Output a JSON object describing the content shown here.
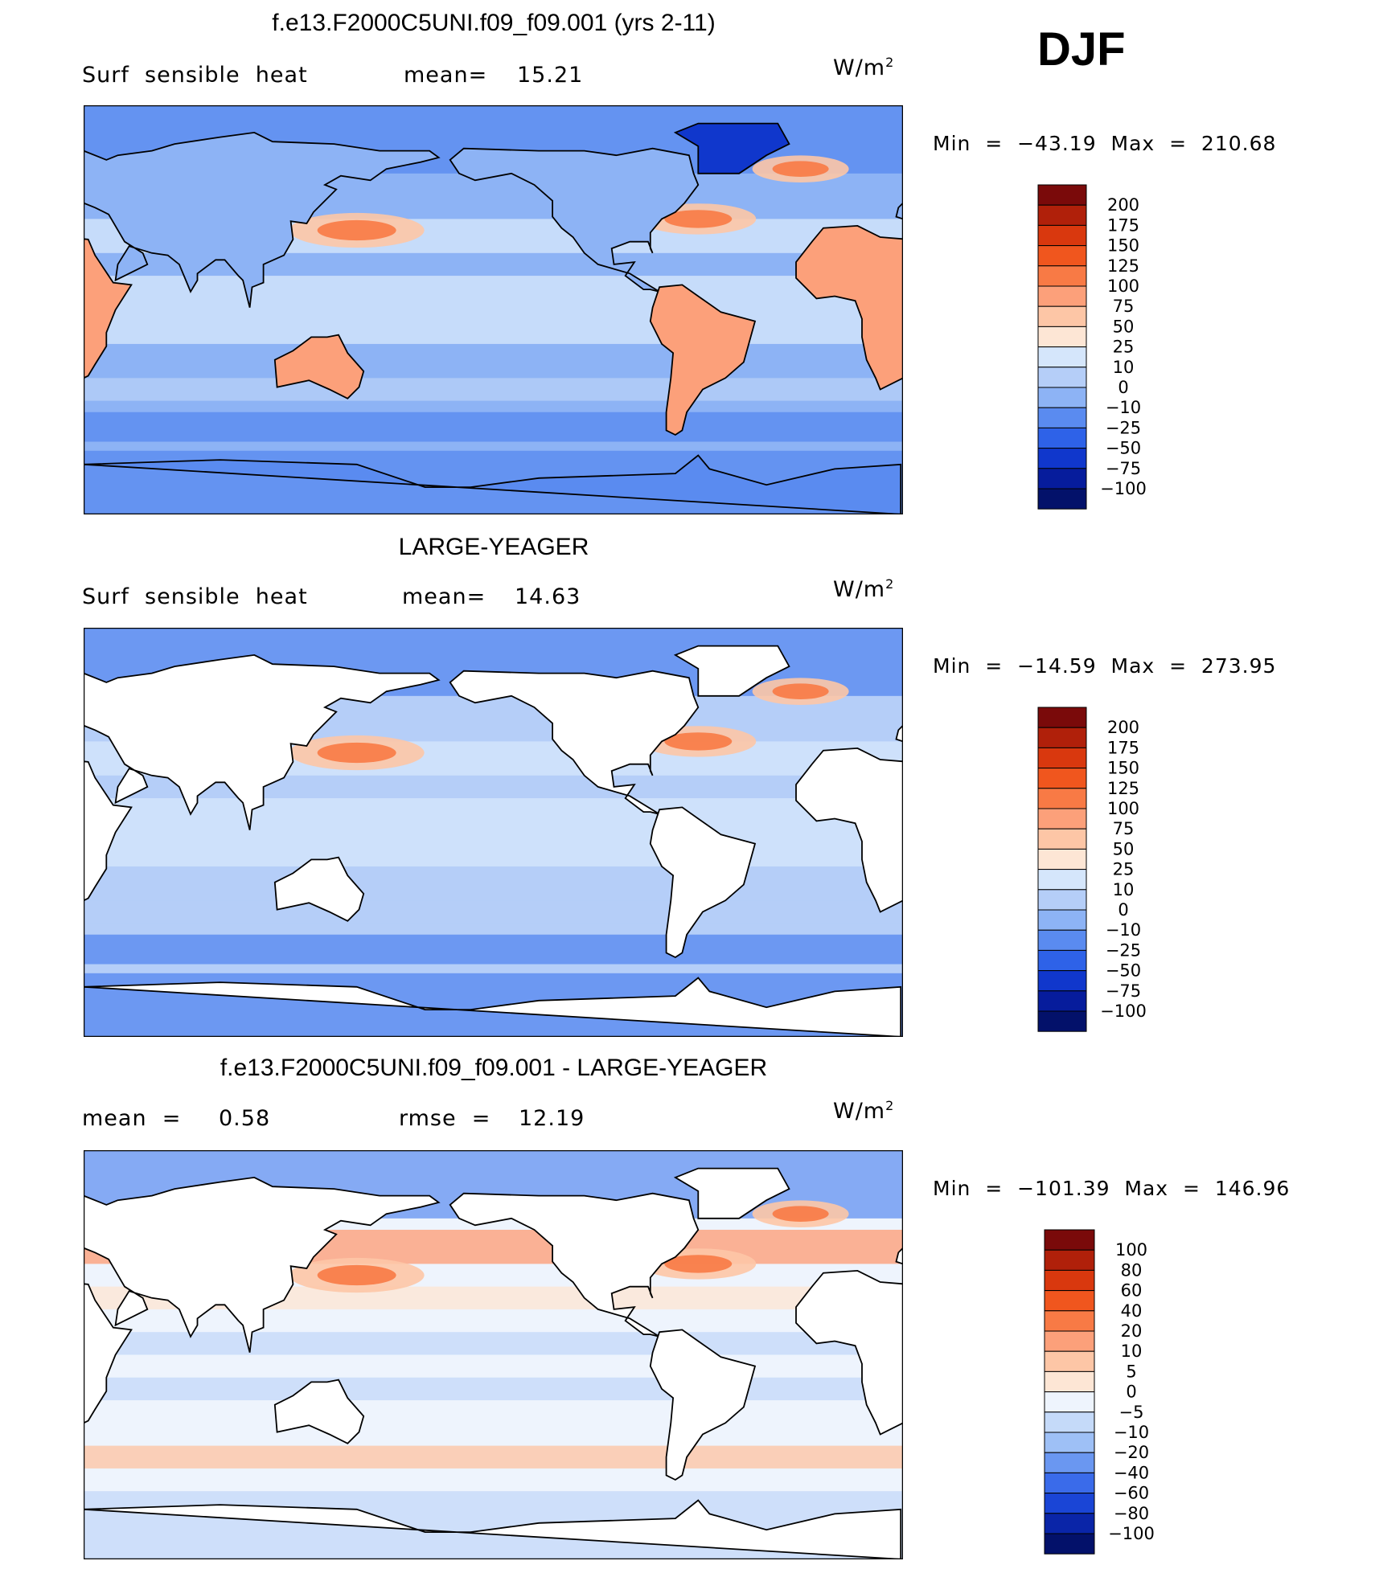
{
  "season": "DJF",
  "panels": [
    {
      "title": "f.e13.F2000C5UNI.f09_f09.001 (yrs 2-11)",
      "left_label": "Surf  sensible  heat",
      "stat_label": "mean=",
      "stat_value": "15.21",
      "units": "W/m",
      "units_sup": "2",
      "min_max": "Min  =  −43.19  Max  =  210.68",
      "land_filled": true,
      "colorbar": {
        "labels": [
          "200",
          "175",
          "150",
          "125",
          "100",
          "75",
          "50",
          "25",
          "10",
          "0",
          "−10",
          "−25",
          "−50",
          "−75",
          "−100"
        ],
        "colors": [
          "#7a0a0a",
          "#b0200a",
          "#d9380e",
          "#f0561e",
          "#f87a45",
          "#fca07a",
          "#fdc6a6",
          "#fde6d5",
          "#d5e6fb",
          "#b5cef8",
          "#8db3f5",
          "#5a8bf0",
          "#2e62e8",
          "#1037cc",
          "#061c9c",
          "#03116a"
        ]
      }
    },
    {
      "title": "LARGE-YEAGER",
      "left_label": "Surf  sensible  heat",
      "stat_label": "mean=",
      "stat_value": "14.63",
      "units": "W/m",
      "units_sup": "2",
      "min_max": "Min  =  −14.59  Max  =  273.95",
      "land_filled": false,
      "colorbar": {
        "labels": [
          "200",
          "175",
          "150",
          "125",
          "100",
          "75",
          "50",
          "25",
          "10",
          "0",
          "−10",
          "−25",
          "−50",
          "−75",
          "−100"
        ],
        "colors": [
          "#7a0a0a",
          "#b0200a",
          "#d9380e",
          "#f0561e",
          "#f87a45",
          "#fca07a",
          "#fdc6a6",
          "#fde6d5",
          "#d5e6fb",
          "#b5cef8",
          "#8db3f5",
          "#5a8bf0",
          "#2e62e8",
          "#1037cc",
          "#061c9c",
          "#03116a"
        ]
      }
    },
    {
      "title": "f.e13.F2000C5UNI.f09_f09.001 - LARGE-YEAGER",
      "left_label": "mean  =",
      "left_value": "0.58",
      "stat_label": "rmse  =",
      "stat_value": "12.19",
      "units": "W/m",
      "units_sup": "2",
      "min_max": "Min  =  −101.39  Max  =  146.96",
      "land_filled": false,
      "colorbar": {
        "labels": [
          "100",
          "80",
          "60",
          "40",
          "20",
          "10",
          "5",
          "0",
          "−5",
          "−10",
          "−20",
          "−40",
          "−60",
          "−80",
          "−100"
        ],
        "colors": [
          "#7a0a0a",
          "#b0200a",
          "#d9380e",
          "#f0561e",
          "#f87a45",
          "#fca07a",
          "#fdc6a6",
          "#fde6d5",
          "#eef4fd",
          "#c5daf9",
          "#9ec0f6",
          "#6a97f1",
          "#3a6bea",
          "#1a45d6",
          "#0a25a8",
          "#03116a"
        ]
      }
    }
  ],
  "chart_data": [
    {
      "type": "heatmap",
      "title": "f.e13.F2000C5UNI.f09_f09.001 (yrs 2-11)",
      "variable": "Surf  sensible  heat",
      "units": "W/m2",
      "mean": 15.21,
      "min": -43.19,
      "max": 210.68,
      "levels": [
        -100,
        -75,
        -50,
        -25,
        -10,
        0,
        10,
        25,
        50,
        75,
        100,
        125,
        150,
        175,
        200
      ]
    },
    {
      "type": "heatmap",
      "title": "LARGE-YEAGER",
      "variable": "Surf  sensible  heat",
      "units": "W/m2",
      "mean": 14.63,
      "min": -14.59,
      "max": 273.95,
      "levels": [
        -100,
        -75,
        -50,
        -25,
        -10,
        0,
        10,
        25,
        50,
        75,
        100,
        125,
        150,
        175,
        200
      ]
    },
    {
      "type": "heatmap",
      "title": "f.e13.F2000C5UNI.f09_f09.001 - LARGE-YEAGER",
      "units": "W/m2",
      "mean": 0.58,
      "rmse": 12.19,
      "min": -101.39,
      "max": 146.96,
      "levels": [
        -100,
        -80,
        -60,
        -40,
        -20,
        -10,
        -5,
        0,
        5,
        10,
        20,
        40,
        60,
        80,
        100
      ]
    }
  ]
}
